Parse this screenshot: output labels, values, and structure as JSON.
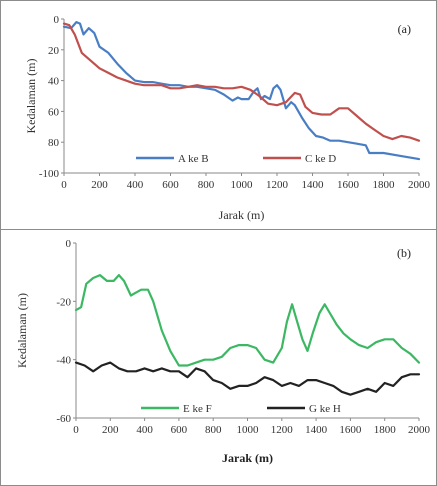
{
  "chart_data": [
    {
      "type": "line",
      "panel_label": "(a)",
      "xlabel": "Jarak (m)",
      "ylabel": "Kedalaman (m)",
      "xlim": [
        0,
        2000
      ],
      "ylim": [
        -100,
        0
      ],
      "x_ticks": [
        0,
        200,
        400,
        600,
        800,
        1000,
        1200,
        1400,
        1600,
        1800,
        2000
      ],
      "y_ticks": [
        0,
        -20,
        -40,
        -60,
        -80,
        -100
      ],
      "y_tick_labels": [
        "0",
        "20",
        "40",
        "60",
        "80",
        "-100"
      ],
      "grid": false,
      "legend_position": "bottom-center",
      "series": [
        {
          "name": "A ke B",
          "color": "#4a7ec4",
          "x": [
            0,
            40,
            70,
            90,
            110,
            140,
            170,
            200,
            250,
            300,
            350,
            400,
            450,
            500,
            550,
            600,
            650,
            700,
            750,
            800,
            850,
            900,
            950,
            980,
            1000,
            1040,
            1070,
            1090,
            1110,
            1130,
            1160,
            1180,
            1200,
            1220,
            1250,
            1280,
            1300,
            1340,
            1380,
            1420,
            1460,
            1500,
            1550,
            1600,
            1650,
            1700,
            1720,
            1800,
            1900,
            2000
          ],
          "y": [
            -5,
            -6,
            -2,
            -3,
            -10,
            -6,
            -9,
            -18,
            -22,
            -29,
            -35,
            -40,
            -41,
            -41,
            -42,
            -43,
            -43,
            -44,
            -44,
            -45,
            -46,
            -49,
            -53,
            -51,
            -52,
            -52,
            -47,
            -45,
            -52,
            -50,
            -52,
            -45,
            -43,
            -46,
            -58,
            -54,
            -56,
            -64,
            -71,
            -76,
            -77,
            -79,
            -79,
            -80,
            -81,
            -82,
            -87,
            -87,
            -89,
            -91
          ]
        },
        {
          "name": "C ke D",
          "color": "#c0504d",
          "x": [
            0,
            30,
            60,
            100,
            150,
            200,
            250,
            300,
            350,
            400,
            450,
            500,
            550,
            600,
            650,
            700,
            750,
            800,
            850,
            900,
            950,
            1000,
            1050,
            1100,
            1150,
            1200,
            1250,
            1300,
            1330,
            1360,
            1400,
            1450,
            1500,
            1550,
            1600,
            1650,
            1700,
            1750,
            1800,
            1850,
            1900,
            1950,
            2000
          ],
          "y": [
            -3,
            -4,
            -10,
            -22,
            -27,
            -32,
            -35,
            -38,
            -40,
            -42,
            -43,
            -43,
            -43,
            -45,
            -45,
            -44,
            -43,
            -44,
            -44,
            -45,
            -45,
            -44,
            -46,
            -50,
            -55,
            -56,
            -54,
            -48,
            -49,
            -57,
            -61,
            -62,
            -62,
            -58,
            -58,
            -63,
            -68,
            -72,
            -76,
            -78,
            -76,
            -77,
            -79
          ]
        }
      ]
    },
    {
      "type": "line",
      "panel_label": "(b)",
      "xlabel": "Jarak (m)",
      "ylabel": "Kedalaman (m)",
      "xlim": [
        0,
        2000
      ],
      "ylim": [
        -60,
        0
      ],
      "x_ticks": [
        0,
        200,
        400,
        600,
        800,
        1000,
        1200,
        1400,
        1600,
        1800,
        2000
      ],
      "y_ticks": [
        0,
        -20,
        -40,
        -60
      ],
      "y_tick_labels": [
        "0",
        "-20",
        "-40",
        "-60"
      ],
      "grid": false,
      "legend_position": "bottom-center",
      "series": [
        {
          "name": "E ke F",
          "color": "#3cb863",
          "x": [
            0,
            30,
            60,
            100,
            140,
            180,
            220,
            250,
            280,
            320,
            350,
            380,
            420,
            450,
            500,
            550,
            600,
            650,
            700,
            750,
            800,
            850,
            900,
            950,
            1000,
            1050,
            1100,
            1150,
            1200,
            1230,
            1260,
            1290,
            1320,
            1350,
            1380,
            1420,
            1450,
            1480,
            1520,
            1560,
            1600,
            1650,
            1700,
            1750,
            1800,
            1850,
            1900,
            1950,
            2000
          ],
          "y": [
            -23,
            -22,
            -14,
            -12,
            -11,
            -13,
            -13,
            -11,
            -13,
            -18,
            -17,
            -16,
            -16,
            -20,
            -30,
            -37,
            -42,
            -42,
            -41,
            -40,
            -40,
            -39,
            -36,
            -35,
            -35,
            -36,
            -40,
            -41,
            -36,
            -27,
            -21,
            -27,
            -33,
            -37,
            -31,
            -24,
            -21,
            -24,
            -28,
            -31,
            -33,
            -35,
            -36,
            -34,
            -33,
            -33,
            -36,
            -38,
            -41
          ]
        },
        {
          "name": "G ke H",
          "color": "#222222",
          "x": [
            0,
            50,
            100,
            150,
            200,
            250,
            300,
            350,
            400,
            450,
            500,
            550,
            600,
            650,
            700,
            750,
            800,
            850,
            900,
            950,
            1000,
            1050,
            1100,
            1150,
            1200,
            1250,
            1300,
            1350,
            1400,
            1450,
            1500,
            1550,
            1600,
            1650,
            1700,
            1750,
            1800,
            1850,
            1900,
            1950,
            2000
          ],
          "y": [
            -41,
            -42,
            -44,
            -42,
            -41,
            -43,
            -44,
            -44,
            -43,
            -44,
            -43,
            -44,
            -44,
            -46,
            -43,
            -44,
            -47,
            -48,
            -50,
            -49,
            -49,
            -48,
            -46,
            -47,
            -49,
            -48,
            -49,
            -47,
            -47,
            -48,
            -49,
            -51,
            -52,
            -51,
            -50,
            -51,
            -48,
            -49,
            -46,
            -45,
            -45
          ]
        }
      ]
    }
  ]
}
